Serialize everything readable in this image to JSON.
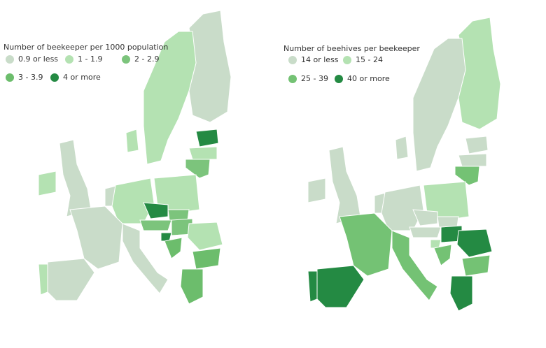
{
  "maps": [
    {
      "legend_title": "Number of beekeeper per 1000 population",
      "legend": [
        {
          "label": "0.9 or less",
          "color": "#c9dcc9"
        },
        {
          "label": "1 - 1.9",
          "color": "#b4e2b2"
        },
        {
          "label": "2 - 2.9",
          "color": "#7cc47c"
        },
        {
          "label": "3 - 3.9",
          "color": "#6cbd6c"
        },
        {
          "label": "4 or more",
          "color": "#248a43"
        }
      ]
    },
    {
      "legend_title": "Number of beehives per beekeeper",
      "legend": [
        {
          "label": "14 or less",
          "color": "#c9dcc9"
        },
        {
          "label": "15 - 24",
          "color": "#b4e2b2"
        },
        {
          "label": "25 - 39",
          "color": "#74c274"
        },
        {
          "label": "40 or more",
          "color": "#248a43"
        }
      ]
    }
  ]
}
